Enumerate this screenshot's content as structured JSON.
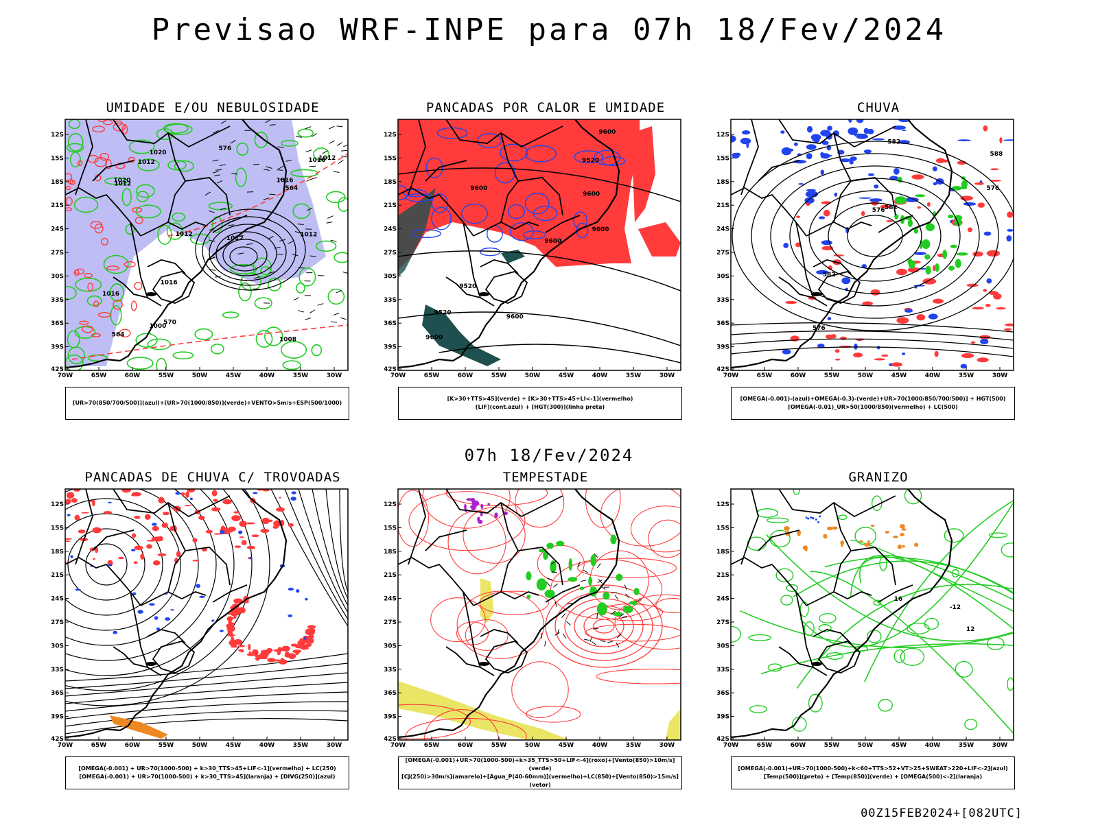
{
  "header": {
    "title": "Previsao WRF-INPE  para 07h 18/Fev/2024",
    "mid_title": "07h 18/Fev/2024",
    "footer": "00Z15FEB2024+[082UTC]"
  },
  "axes": {
    "lat_ticks": [
      "12S",
      "15S",
      "18S",
      "21S",
      "24S",
      "27S",
      "30S",
      "33S",
      "36S",
      "39S",
      "42S"
    ],
    "lon_ticks": [
      "70W",
      "65W",
      "60W",
      "55W",
      "50W",
      "45W",
      "40W",
      "35W",
      "30W"
    ]
  },
  "colors": {
    "blue_fill": "#a8a8f0",
    "green": "#22cc22",
    "red": "#ff3b3b",
    "blue_line": "#2244ee",
    "dark_teal": "#1f5050",
    "yellow": "#e6e04a",
    "orange": "#ee8822",
    "purple": "#aa22cc"
  },
  "panels": [
    {
      "title": "UMIDADE E/OU NEBULOSIDADE",
      "legend": [
        "[UR>70(850/700/500)](azul)+[UR>70(1000/850)](verde)+VENTO>5m/s+ESP(500/1000)"
      ],
      "contour_labels": [
        "1012",
        "1012",
        "1012",
        "1008",
        "1016",
        "1012",
        "1012",
        "1000",
        "1016",
        "1016",
        "1016",
        "1020",
        "1020",
        "1012",
        "570",
        "576",
        "564",
        "564"
      ]
    },
    {
      "title": "PANCADAS POR CALOR E UMIDADE",
      "legend": [
        "[K>30+TTS>45](verde) + [K>30+TTS>45+LI<-1](vermelho)",
        "[LIF](cont.azul) + [HGT(300)](linha preta)"
      ],
      "contour_labels": [
        "9600",
        "9600",
        "9600",
        "9520",
        "9600",
        "9600",
        "9600",
        "9600",
        "9520",
        "9520"
      ]
    },
    {
      "title": "CHUVA",
      "legend": [
        "[OMEGA(-0.001)-(azul)+OMEGA(-0.3)-(verde)+UR>70(1000/850/700/500)] + HGT(500)",
        "[OMEGA(-0.01)_UR>50(1000/850)(vermelho) + LC(500)"
      ],
      "contour_labels": [
        "576",
        "582",
        "588",
        "582",
        "576",
        "582",
        "576"
      ]
    },
    {
      "title": "PANCADAS DE CHUVA C/ TROVOADAS",
      "legend": [
        "[OMEGA(-0.001) + UR>70(1000-500) + k>30_TTS>45+LIF<-1](vermelho) + LC(250)",
        "[OMEGA(-0.001) + UR>70(1000-500) + k>30_TTS>45](laranja) + [DIVG(250)](azul)"
      ],
      "contour_labels": []
    },
    {
      "title": "TEMPESTADE",
      "legend": [
        "[OMEGA(-0.001)+UR>70(1000-500)+k>35_TTS>50+LIF<-4](roxo)+[Vento(850)>10m/s](verde)",
        "[CJ(250)>30m/s](amarelo)+[Agua_P(40-60mm)](vermelho)+LC(850)+[Vento(850)>15m/s](vetor)"
      ],
      "contour_labels": []
    },
    {
      "title": "GRANIZO",
      "legend": [
        "[OMEGA(-0.001)+UR>70(1000-500)+k<60+TTS>52+VT>25+SWEAT>220+LIF<-2](azul)",
        "[Temp(500)](preto) + [Temp(850)](verde) + [OMEGA(500)<-2](laranja)"
      ],
      "contour_labels": [
        "-12",
        "16",
        "12"
      ]
    }
  ]
}
